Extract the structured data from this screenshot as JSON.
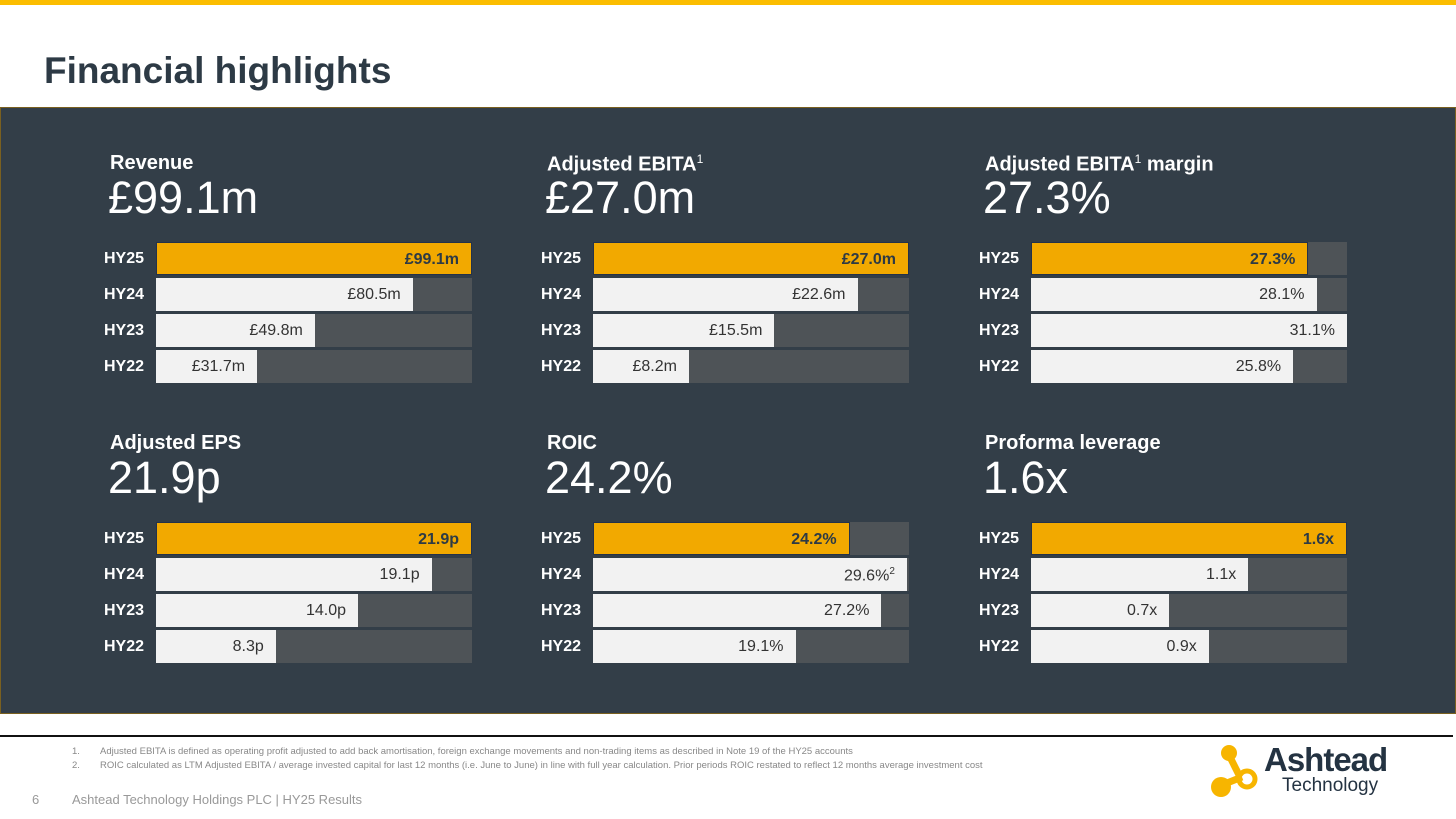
{
  "title": "Financial highlights",
  "chart_data": [
    {
      "type": "bar",
      "title": "Revenue",
      "title_sup": "",
      "headline": "£99.1m",
      "categories": [
        "HY25",
        "HY24",
        "HY23",
        "HY22"
      ],
      "values": [
        99.1,
        80.5,
        49.8,
        31.7
      ],
      "labels": [
        "£99.1m",
        "£80.5m",
        "£49.8m",
        "£31.7m"
      ],
      "label_sups": [
        "",
        "",
        "",
        ""
      ],
      "xlim": [
        0,
        99.1
      ]
    },
    {
      "type": "bar",
      "title": "Adjusted EBITA",
      "title_sup": "1",
      "title_after": "",
      "headline": "£27.0m",
      "categories": [
        "HY25",
        "HY24",
        "HY23",
        "HY22"
      ],
      "values": [
        27.0,
        22.6,
        15.5,
        8.2
      ],
      "labels": [
        "£27.0m",
        "£22.6m",
        "£15.5m",
        "£8.2m"
      ],
      "label_sups": [
        "",
        "",
        "",
        ""
      ],
      "xlim": [
        0,
        27.0
      ]
    },
    {
      "type": "bar",
      "title": "Adjusted EBITA",
      "title_sup": "1",
      "title_after": " margin",
      "headline": "27.3%",
      "categories": [
        "HY25",
        "HY24",
        "HY23",
        "HY22"
      ],
      "values": [
        27.3,
        28.1,
        31.1,
        25.8
      ],
      "labels": [
        "27.3%",
        "28.1%",
        "31.1%",
        "25.8%"
      ],
      "label_sups": [
        "",
        "",
        "",
        ""
      ],
      "xlim": [
        0,
        31.1
      ]
    },
    {
      "type": "bar",
      "title": "Adjusted EPS",
      "title_sup": "",
      "headline": "21.9p",
      "categories": [
        "HY25",
        "HY24",
        "HY23",
        "HY22"
      ],
      "values": [
        21.9,
        19.1,
        14.0,
        8.3
      ],
      "labels": [
        "21.9p",
        "19.1p",
        "14.0p",
        "8.3p"
      ],
      "label_sups": [
        "",
        "",
        "",
        ""
      ],
      "xlim": [
        0,
        21.9
      ]
    },
    {
      "type": "bar",
      "title": "ROIC",
      "title_sup": "",
      "headline": "24.2%",
      "categories": [
        "HY25",
        "HY24",
        "HY23",
        "HY22"
      ],
      "values": [
        24.2,
        29.6,
        27.2,
        19.1
      ],
      "labels": [
        "24.2%",
        "29.6%",
        "27.2%",
        "19.1%"
      ],
      "label_sups": [
        "",
        "2",
        "",
        ""
      ],
      "xlim": [
        0,
        29.8
      ]
    },
    {
      "type": "bar",
      "title": "Proforma leverage",
      "title_sup": "",
      "headline": "1.6x",
      "categories": [
        "HY25",
        "HY24",
        "HY23",
        "HY22"
      ],
      "values": [
        1.6,
        1.1,
        0.7,
        0.9
      ],
      "labels": [
        "1.6x",
        "1.1x",
        "0.7x",
        "0.9x"
      ],
      "label_sups": [
        "",
        "",
        "",
        ""
      ],
      "xlim": [
        0,
        1.6
      ]
    }
  ],
  "colors": {
    "highlight": "#f2a900",
    "bar": "#f2f2f2",
    "track": "#4e5357",
    "panel": "#333e48",
    "accent": "#fbbd00"
  },
  "footnotes": [
    {
      "num": "1.",
      "text": "Adjusted EBITA is defined as operating profit adjusted to add back amortisation, foreign exchange movements and non-trading items as described in Note 19 of the HY25 accounts"
    },
    {
      "num": "2.",
      "text": "ROIC calculated as LTM Adjusted EBITA / average invested capital for last 12 months (i.e. June to June) in line with full year calculation. Prior periods ROIC restated to reflect 12 months average investment cost"
    }
  ],
  "footer": {
    "page": "6",
    "text": "Ashtead Technology Holdings PLC | HY25 Results"
  },
  "logo": {
    "word": "Ashtead",
    "sub": "Technology"
  }
}
